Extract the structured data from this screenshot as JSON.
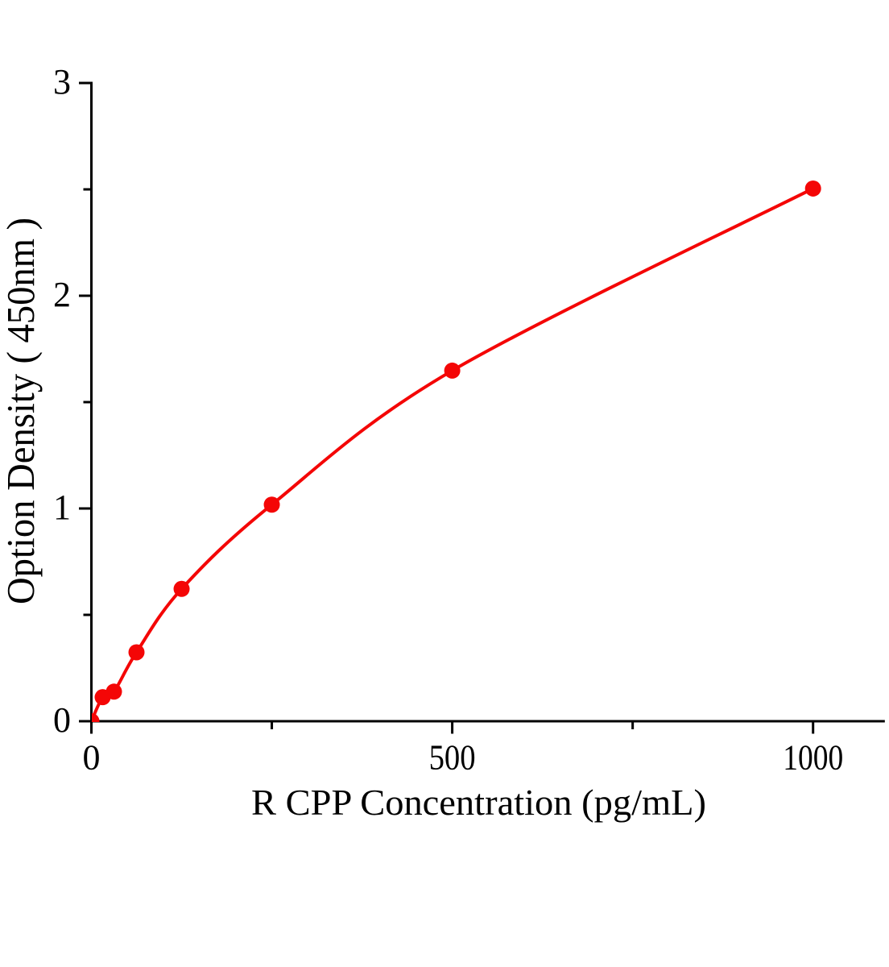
{
  "figure": {
    "background": "#ffffff",
    "kind": "ELISA standard curve plot"
  },
  "chart_data": {
    "type": "scatter",
    "title": "",
    "xlabel": "R CPP Concentration (pg/mL)",
    "ylabel": "Option Density（450nm）",
    "x": [
      0,
      15.625,
      31.25,
      62.5,
      125,
      250,
      500,
      1000
    ],
    "y": [
      0.0,
      0.113,
      0.139,
      0.324,
      0.622,
      1.018,
      1.648,
      2.504
    ],
    "xlim": [
      0,
      1100
    ],
    "ylim": [
      0,
      3
    ],
    "x_major_ticks": [
      0,
      500,
      1000
    ],
    "x_minor_ticks": [
      250,
      750
    ],
    "y_major_ticks": [
      0,
      1,
      2,
      3
    ],
    "y_minor_ticks": [
      0.5,
      1.5,
      2.5
    ],
    "x_tick_labels": [
      "0",
      "500",
      "1000"
    ],
    "y_tick_labels": [
      "0",
      "1",
      "2",
      "3"
    ],
    "series_color": "#f40606",
    "axis_color": "#000000",
    "marker": "filled-circle",
    "line": "smooth-spline",
    "grid": false,
    "legend": null
  }
}
